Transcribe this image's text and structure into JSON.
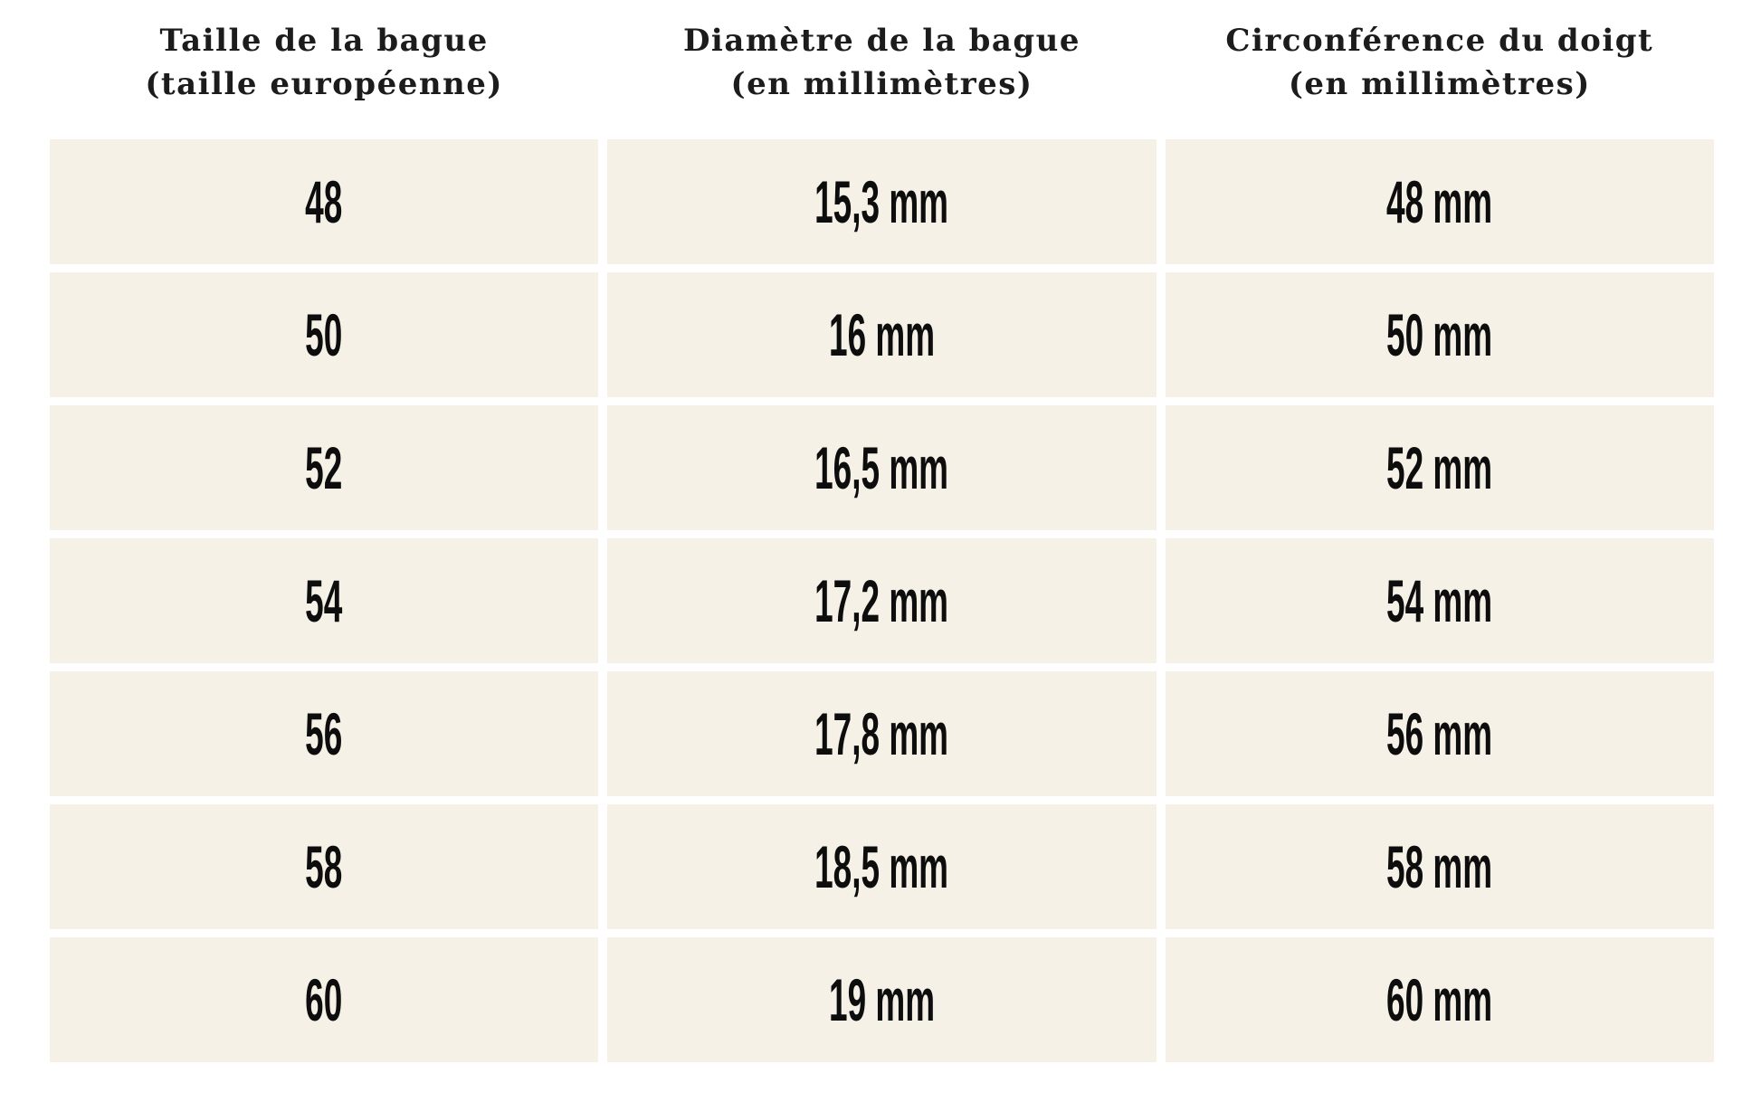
{
  "colors": {
    "page_bg": "#ffffff",
    "cell_bg": "#f5f1e6",
    "header_text": "#1c1c1c",
    "value_text": "#0d0d0d"
  },
  "table": {
    "headers": [
      {
        "line1": "Taille de la bague",
        "line2": "(taille européenne)"
      },
      {
        "line1": "Diamètre de la bague",
        "line2": "(en millimètres)"
      },
      {
        "line1": "Circonférence du doigt",
        "line2": "(en millimètres)"
      }
    ],
    "rows": [
      {
        "size": "48",
        "diameter": "15,3 mm",
        "circumference": "48 mm"
      },
      {
        "size": "50",
        "diameter": "16 mm",
        "circumference": "50 mm"
      },
      {
        "size": "52",
        "diameter": "16,5 mm",
        "circumference": "52 mm"
      },
      {
        "size": "54",
        "diameter": "17,2 mm",
        "circumference": "54 mm"
      },
      {
        "size": "56",
        "diameter": "17,8 mm",
        "circumference": "56 mm"
      },
      {
        "size": "58",
        "diameter": "18,5 mm",
        "circumference": "58 mm"
      },
      {
        "size": "60",
        "diameter": "19 mm",
        "circumference": "60 mm"
      }
    ]
  },
  "chart_data": {
    "type": "table",
    "title": "",
    "columns": [
      "Taille de la bague (taille européenne)",
      "Diamètre de la bague (en millimètres)",
      "Circonférence du doigt (en millimètres)"
    ],
    "rows": [
      [
        "48",
        "15,3 mm",
        "48 mm"
      ],
      [
        "50",
        "16 mm",
        "50 mm"
      ],
      [
        "52",
        "16,5 mm",
        "52 mm"
      ],
      [
        "54",
        "17,2 mm",
        "54 mm"
      ],
      [
        "56",
        "17,8 mm",
        "56 mm"
      ],
      [
        "58",
        "18,5 mm",
        "58 mm"
      ],
      [
        "60",
        "19 mm",
        "60 mm"
      ]
    ],
    "layout": {
      "header_lines": 2,
      "row_count": 7,
      "grid": "3 equal columns, white gaps between cells"
    }
  }
}
